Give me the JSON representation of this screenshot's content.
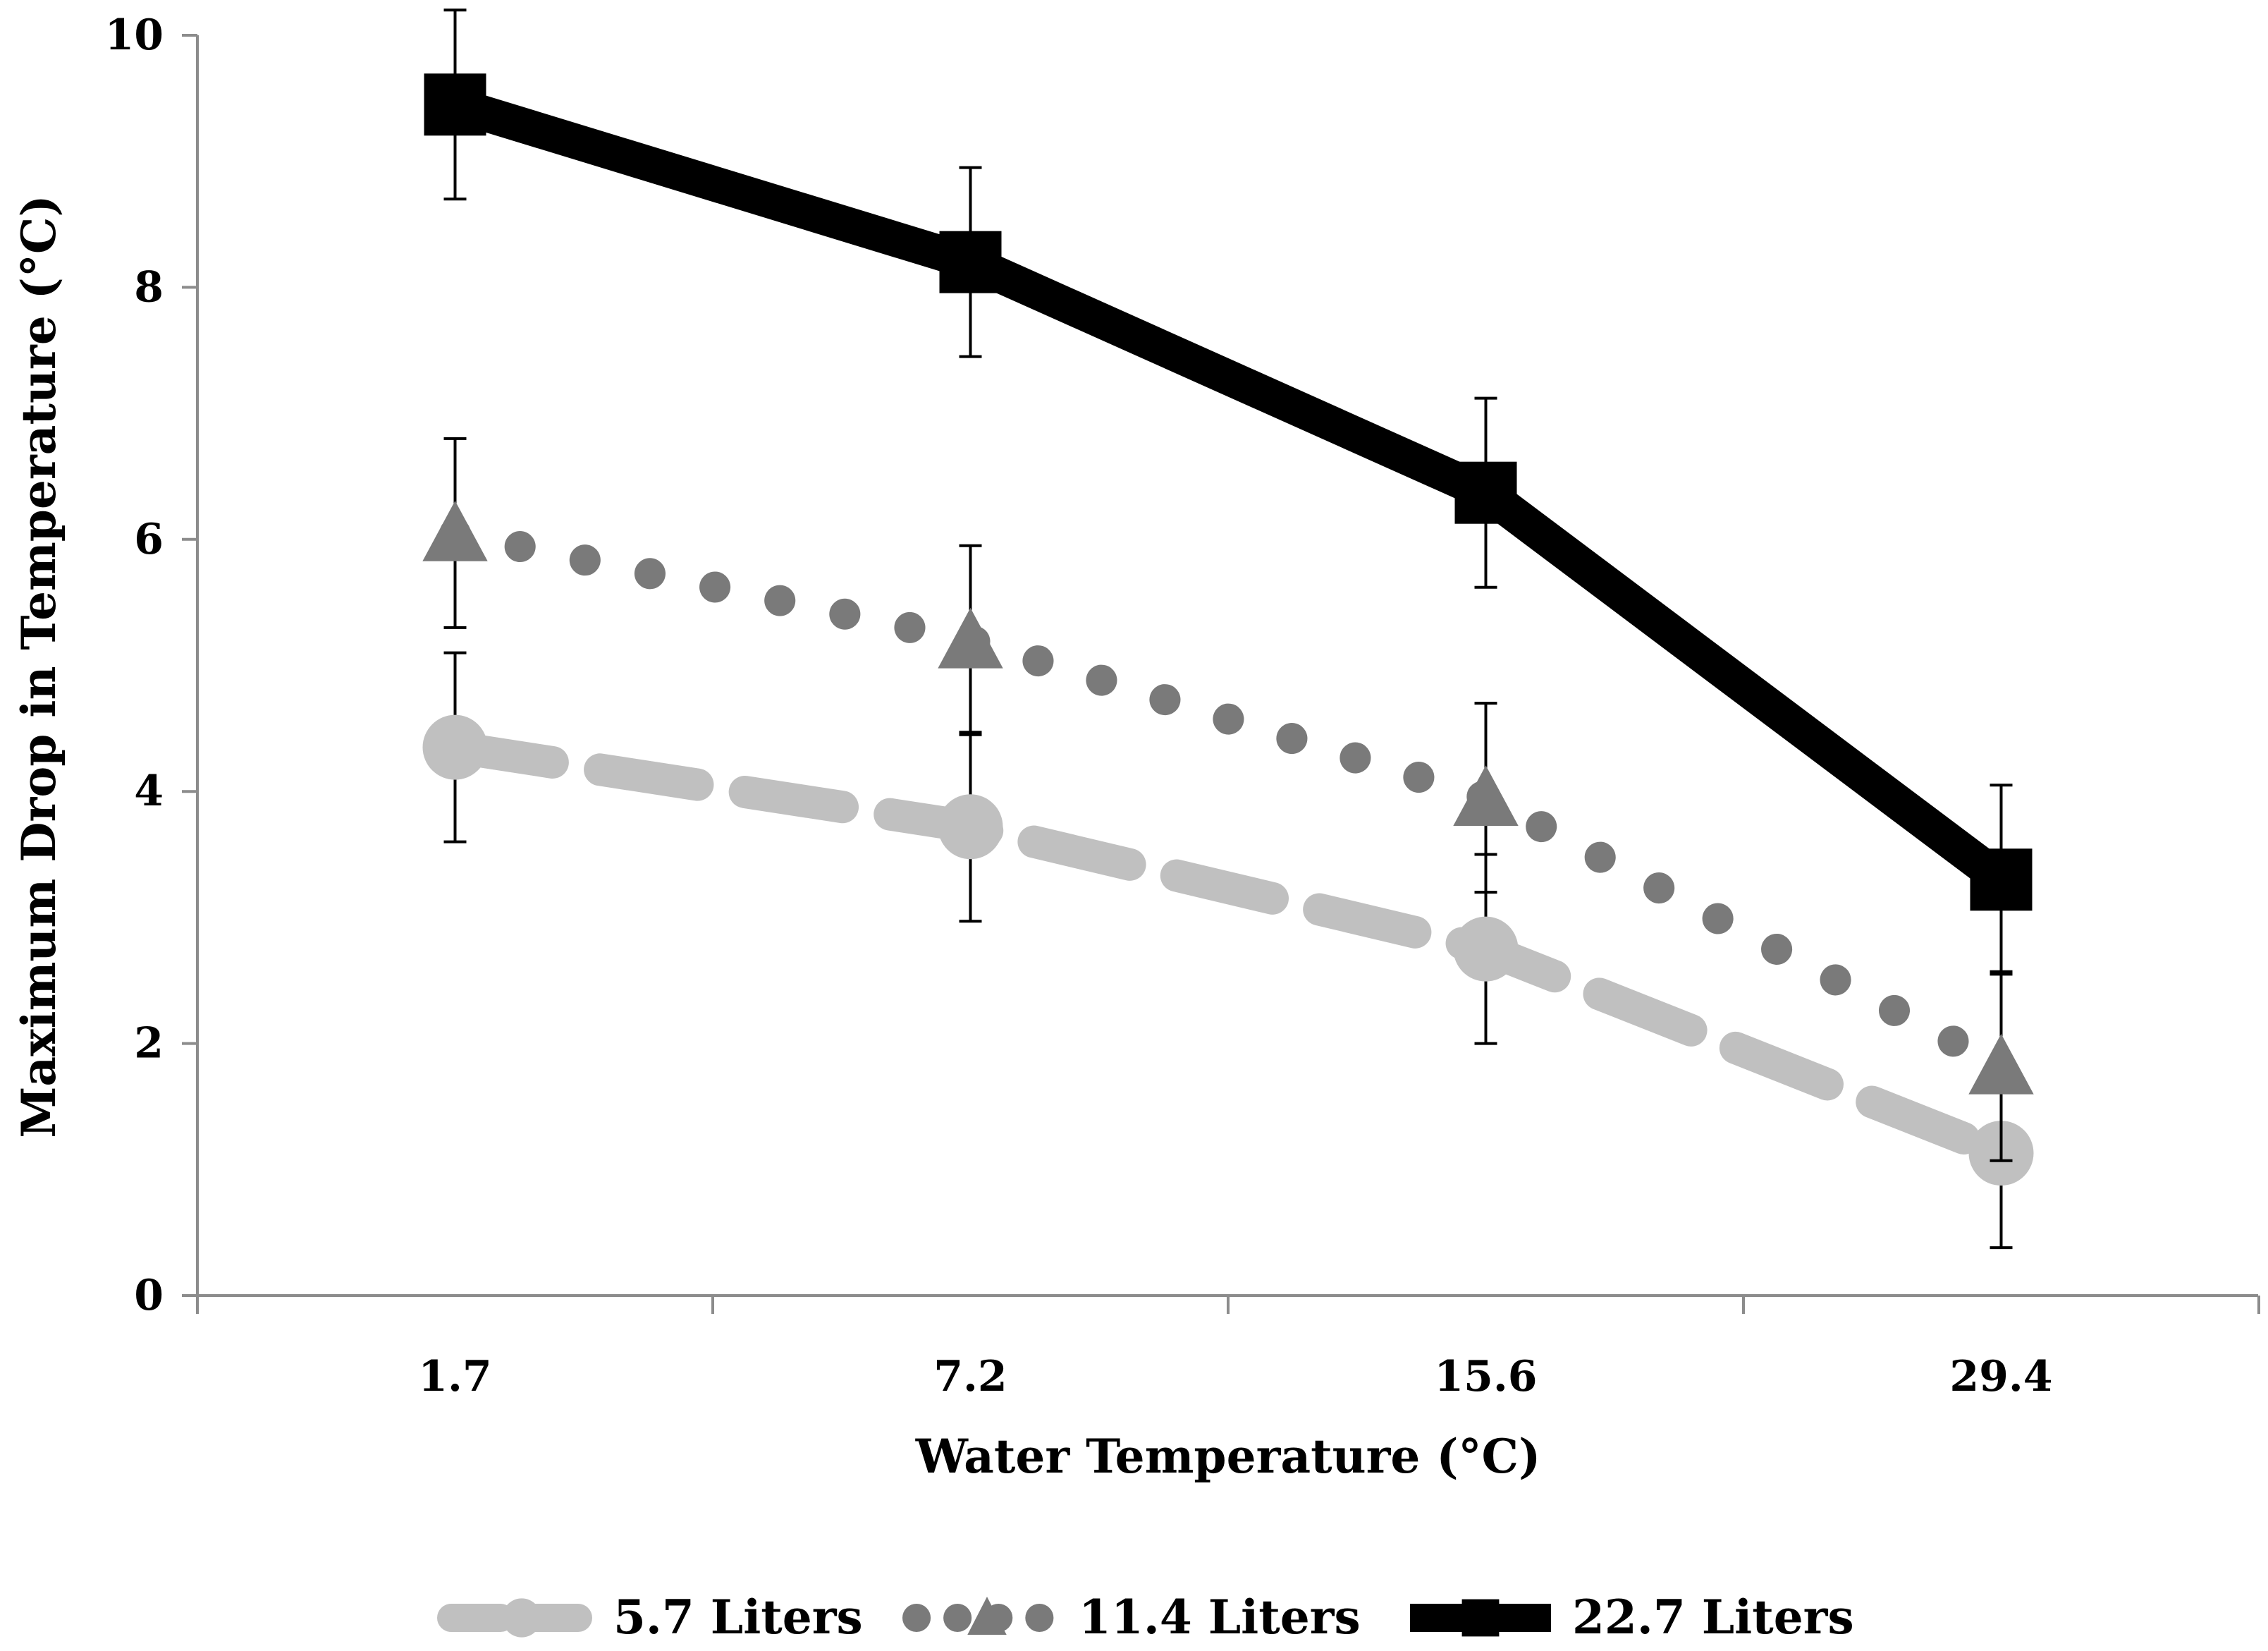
{
  "chart_data": {
    "type": "line",
    "title": "",
    "xlabel": "Water Temperature (°C)",
    "ylabel": "Maximum Drop in Temperature (°C)",
    "categories": [
      "1.7",
      "7.2",
      "15.6",
      "29.4"
    ],
    "ylim": [
      0,
      10
    ],
    "yticks": [
      "0",
      "2",
      "4",
      "6",
      "8",
      "10"
    ],
    "grid": false,
    "legend_position": "bottom",
    "series": [
      {
        "name": "5.7 Liters",
        "values": [
          4.35,
          3.72,
          2.75,
          1.13
        ],
        "errors": [
          0.75,
          0.75,
          0.75,
          0.75
        ],
        "color": "#c0c0c0",
        "line_style": "dashed",
        "marker": "circle"
      },
      {
        "name": "11.4 Liters",
        "values": [
          6.05,
          5.2,
          3.95,
          1.82
        ],
        "errors": [
          0.75,
          0.75,
          0.75,
          0.75
        ],
        "color": "#7a7a7a",
        "line_style": "dotted",
        "marker": "triangle"
      },
      {
        "name": "22.7 Liters",
        "values": [
          9.45,
          8.2,
          6.37,
          3.3
        ],
        "errors": [
          0.75,
          0.75,
          0.75,
          0.75
        ],
        "color": "#000000",
        "line_style": "solid",
        "marker": "square"
      }
    ]
  }
}
